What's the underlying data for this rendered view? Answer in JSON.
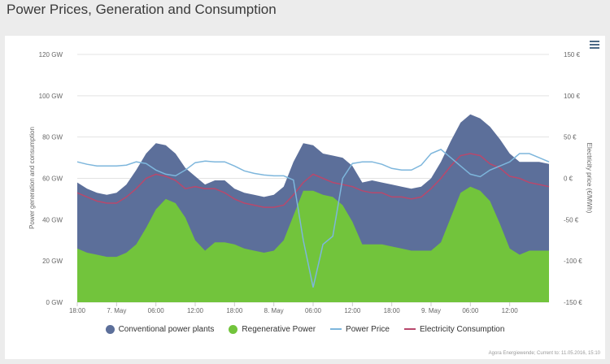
{
  "page": {
    "title": "Power Prices, Generation and Consumption"
  },
  "menu": {
    "icon": "hamburger-menu-icon"
  },
  "legend": {
    "conventional": "Conventional power plants",
    "regenerative": "Regenerative Power",
    "price": "Power Price",
    "consumption": "Electricity Consumption"
  },
  "credit": "Agora Energiewende; Current to: 11.05.2016, 15:10",
  "colors": {
    "conventional": "#5c6f9a",
    "regenerative": "#72c43c",
    "price": "#7db6dc",
    "consumption": "#b8486c"
  },
  "chart_data": {
    "type": "area",
    "title": "",
    "ylabel_left": "Power generation and consumption",
    "ylabel_right": "Electricity price (€/MWh)",
    "ylim_left": [
      0,
      120
    ],
    "ylim_right": [
      -150,
      150
    ],
    "y_ticks_left": [
      "0 GW",
      "20 GW",
      "40 GW",
      "60 GW",
      "80 GW",
      "100 GW",
      "120 GW"
    ],
    "y_ticks_right": [
      "-150 €",
      "-100 €",
      "-50 €",
      "0 €",
      "50 €",
      "100 €",
      "150 €"
    ],
    "x_range_hours": [
      18,
      66
    ],
    "x_ticks": [
      {
        "h": 18,
        "label": "18:00"
      },
      {
        "h": 22,
        "label": "7. May"
      },
      {
        "h": 26,
        "label": "06:00"
      },
      {
        "h": 30,
        "label": "12:00"
      },
      {
        "h": 34,
        "label": "18:00"
      },
      {
        "h": 38,
        "label": "8. May"
      },
      {
        "h": 42,
        "label": "06:00"
      },
      {
        "h": 46,
        "label": "12:00"
      },
      {
        "h": 50,
        "label": "18:00"
      },
      {
        "h": 54,
        "label": "9. May"
      },
      {
        "h": 58,
        "label": "06:00"
      },
      {
        "h": 62,
        "label": "12:00"
      }
    ],
    "hours": [
      18,
      19,
      20,
      21,
      22,
      23,
      24,
      25,
      26,
      27,
      28,
      29,
      30,
      31,
      32,
      33,
      34,
      35,
      36,
      37,
      38,
      39,
      40,
      41,
      42,
      43,
      44,
      45,
      46,
      47,
      48,
      49,
      50,
      51,
      52,
      53,
      54,
      55,
      56,
      57,
      58,
      59,
      60,
      61,
      62,
      63,
      64,
      65,
      66
    ],
    "regenerative_gw": [
      26,
      24,
      23,
      22,
      22,
      24,
      28,
      36,
      45,
      50,
      48,
      41,
      30,
      25,
      29,
      29,
      28,
      26,
      25,
      24,
      25,
      30,
      42,
      54,
      54,
      52,
      51,
      47,
      39,
      28,
      28,
      28,
      27,
      26,
      25,
      25,
      25,
      29,
      41,
      53,
      56,
      54,
      49,
      38,
      26,
      23,
      25,
      25,
      25
    ],
    "total_generation_gw": [
      58,
      55,
      53,
      52,
      53,
      57,
      64,
      72,
      77,
      76,
      72,
      65,
      61,
      57,
      59,
      59,
      55,
      53,
      52,
      51,
      52,
      56,
      68,
      77,
      76,
      72,
      71,
      70,
      66,
      58,
      59,
      58,
      57,
      56,
      55,
      56,
      60,
      68,
      78,
      87,
      91,
      89,
      85,
      79,
      72,
      68,
      68,
      68,
      67
    ],
    "consumption_gw": [
      53,
      51,
      49,
      48,
      48,
      51,
      55,
      60,
      62,
      61,
      59,
      55,
      56,
      55,
      55,
      53,
      50,
      48,
      47,
      46,
      46,
      47,
      52,
      58,
      62,
      60,
      58,
      57,
      56,
      54,
      53,
      53,
      51,
      51,
      50,
      51,
      55,
      60,
      66,
      71,
      72,
      71,
      67,
      65,
      61,
      60,
      58,
      57,
      56
    ],
    "price_eur_mwh": [
      20,
      17,
      15,
      15,
      15,
      16,
      20,
      18,
      10,
      5,
      3,
      10,
      19,
      21,
      20,
      20,
      15,
      9,
      6,
      4,
      3,
      3,
      -2,
      -75,
      -132,
      -80,
      -70,
      0,
      18,
      20,
      20,
      17,
      12,
      10,
      10,
      16,
      30,
      35,
      25,
      15,
      5,
      2,
      10,
      15,
      20,
      30,
      30,
      25,
      20
    ]
  }
}
